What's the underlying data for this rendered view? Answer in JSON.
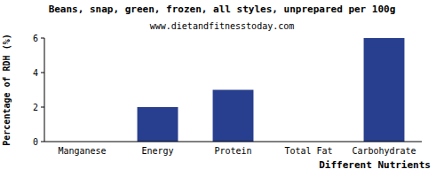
{
  "chart_data": {
    "type": "bar",
    "title": "Beans, snap, green, frozen, all styles, unprepared per 100g",
    "subtitle": "www.dietandfitnesstoday.com",
    "x_label": "Different Nutrients",
    "y_label": "Percentage of RDH (%)",
    "categories": [
      "Manganese",
      "Energy",
      "Protein",
      "Total Fat",
      "Carbohydrate"
    ],
    "values": [
      0,
      2,
      3,
      0,
      6
    ],
    "color": "#283e8e",
    "ylim": [
      0,
      6
    ],
    "yticks": [
      0,
      2,
      4,
      6
    ],
    "grid": false
  }
}
